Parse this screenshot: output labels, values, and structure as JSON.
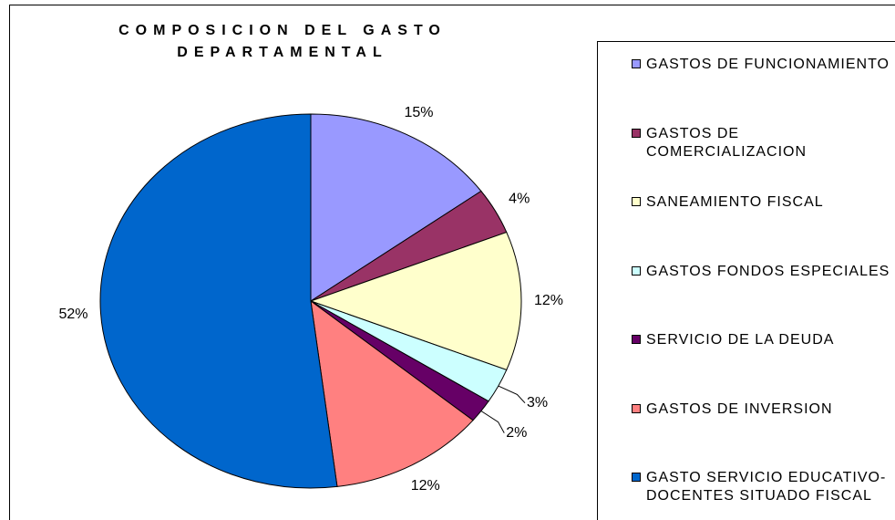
{
  "chart_data": {
    "type": "pie",
    "title": "COMPOSICION DEL GASTO DEPARTAMENTAL",
    "categories": [
      "GASTOS DE FUNCIONAMIENTO",
      "GASTOS DE COMERCIALIZACION",
      "SANEAMIENTO FISCAL",
      "GASTOS FONDOS ESPECIALES",
      "SERVICIO DE LA DEUDA",
      "GASTOS DE INVERSION",
      "GASTO SERVICIO EDUCATIVO-DOCENTES SITUADO FISCAL"
    ],
    "values": [
      15,
      4,
      12,
      3,
      2,
      12,
      52
    ],
    "value_labels": [
      "15%",
      "4%",
      "12%",
      "3%",
      "2%",
      "12%",
      "52%"
    ],
    "colors": [
      "#9999ff",
      "#993366",
      "#ffffcc",
      "#ccffff",
      "#660066",
      "#ff8080",
      "#0066cc"
    ],
    "legend": "right"
  }
}
